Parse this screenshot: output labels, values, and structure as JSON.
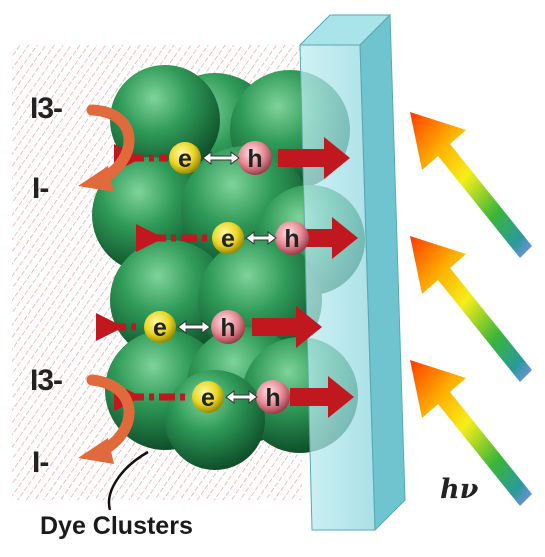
{
  "labels": {
    "triiodide_top": "I3-",
    "iodide_top": "I-",
    "triiodide_bottom": "I3-",
    "iodide_bottom": "I-",
    "electron": "e",
    "hole": "h",
    "caption": "Dye Clusters",
    "light": "hν"
  },
  "pairs": [
    {
      "electron": "e",
      "hole": "h"
    },
    {
      "electron": "e",
      "hole": "h"
    },
    {
      "electron": "e",
      "hole": "h"
    },
    {
      "electron": "e",
      "hole": "h"
    }
  ],
  "colors": {
    "sphere": "#2e8b4e",
    "electron": "#f2e12a",
    "hole": "#e07a86",
    "arrow": "#c0181e",
    "glass": "#9fdde3",
    "hatch": "#e8a0a0",
    "redox_arrow": "#e06a3c"
  },
  "icons": [
    "double-arrow-icon",
    "photon-arrow-icon"
  ]
}
